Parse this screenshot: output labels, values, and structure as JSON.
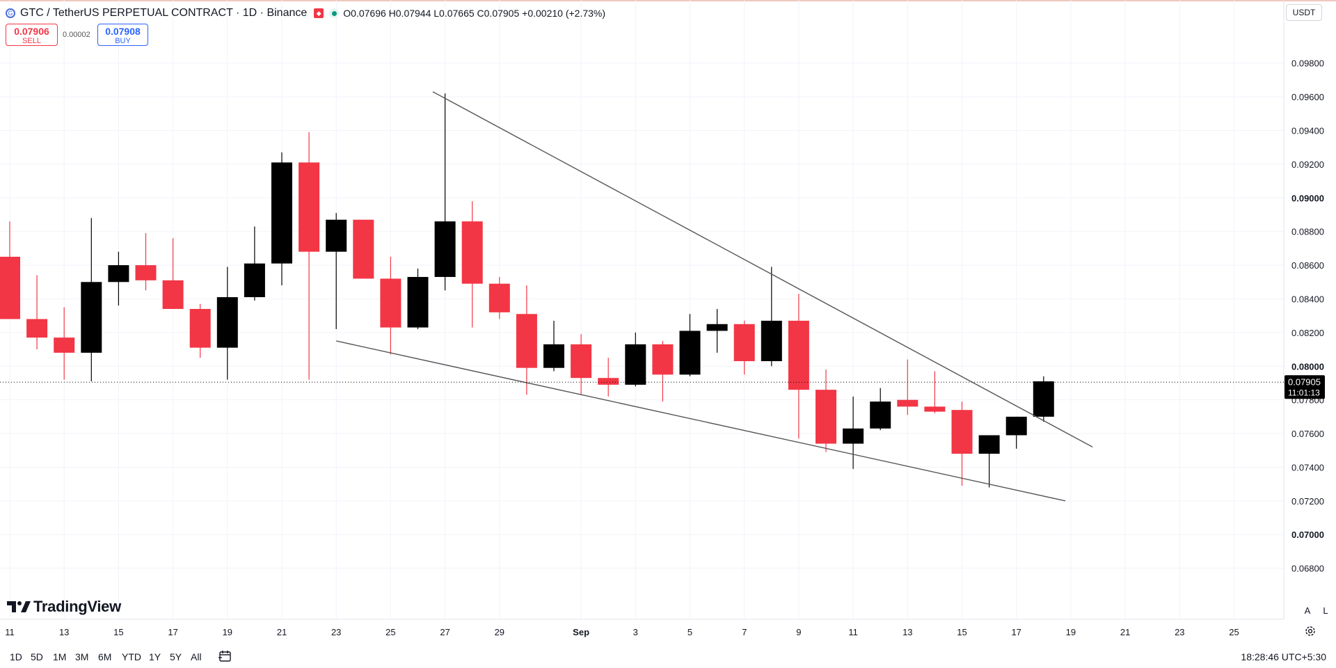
{
  "header": {
    "symbol_title": "GTC / TetherUS PERPETUAL CONTRACT · 1D · Binance",
    "logo_icon": "gtc-coin-icon",
    "ohlc": "O0.07696 H0.07944 L0.07665 C0.07905 +0.00210 (+2.73%)"
  },
  "trade": {
    "sell_price": "0.07906",
    "sell_label": "SELL",
    "spread": "0.00002",
    "buy_price": "0.07908",
    "buy_label": "BUY"
  },
  "currency_button": "USDT",
  "brand": "TradingView",
  "scale_buttons": {
    "auto": "A",
    "log": "L"
  },
  "ranges": [
    "1D",
    "5D",
    "1M",
    "3M",
    "6M",
    "YTD",
    "1Y",
    "5Y",
    "All"
  ],
  "clock": "18:28:46 UTC+5:30",
  "colors": {
    "up": "#000000",
    "down": "#f23645",
    "trendline": "#555555"
  },
  "chart_data": {
    "type": "candlestick",
    "y_ticks": [
      "0.09800",
      "0.09600",
      "0.09400",
      "0.09200",
      "0.09000",
      "0.08800",
      "0.08600",
      "0.08400",
      "0.08200",
      "0.08000",
      "0.07800",
      "0.07600",
      "0.07400",
      "0.07200",
      "0.07000",
      "0.06800"
    ],
    "ylim": [
      0.0672,
      0.0996
    ],
    "x_ticks": [
      {
        "label": "11",
        "i": 0
      },
      {
        "label": "13",
        "i": 2
      },
      {
        "label": "15",
        "i": 4
      },
      {
        "label": "17",
        "i": 6
      },
      {
        "label": "19",
        "i": 8
      },
      {
        "label": "21",
        "i": 10
      },
      {
        "label": "23",
        "i": 12
      },
      {
        "label": "25",
        "i": 14
      },
      {
        "label": "27",
        "i": 16
      },
      {
        "label": "29",
        "i": 18
      },
      {
        "label": "Sep",
        "i": 21
      },
      {
        "label": "3",
        "i": 23
      },
      {
        "label": "5",
        "i": 25
      },
      {
        "label": "7",
        "i": 27
      },
      {
        "label": "9",
        "i": 29
      },
      {
        "label": "11",
        "i": 31
      },
      {
        "label": "13",
        "i": 33
      },
      {
        "label": "15",
        "i": 35
      },
      {
        "label": "17",
        "i": 37
      },
      {
        "label": "19",
        "i": 39
      },
      {
        "label": "21",
        "i": 41
      },
      {
        "label": "23",
        "i": 43
      },
      {
        "label": "25",
        "i": 45
      }
    ],
    "candles": [
      {
        "o": 0.0865,
        "h": 0.0886,
        "l": 0.0828,
        "c": 0.0828
      },
      {
        "o": 0.0828,
        "h": 0.0854,
        "l": 0.081,
        "c": 0.0817
      },
      {
        "o": 0.0817,
        "h": 0.0835,
        "l": 0.0792,
        "c": 0.0808
      },
      {
        "o": 0.0808,
        "h": 0.0888,
        "l": 0.0791,
        "c": 0.085
      },
      {
        "o": 0.085,
        "h": 0.0868,
        "l": 0.0836,
        "c": 0.086
      },
      {
        "o": 0.086,
        "h": 0.0879,
        "l": 0.0845,
        "c": 0.0851
      },
      {
        "o": 0.0851,
        "h": 0.0876,
        "l": 0.0834,
        "c": 0.0834
      },
      {
        "o": 0.0834,
        "h": 0.0837,
        "l": 0.0805,
        "c": 0.0811
      },
      {
        "o": 0.0811,
        "h": 0.0859,
        "l": 0.0792,
        "c": 0.0841
      },
      {
        "o": 0.0841,
        "h": 0.0883,
        "l": 0.0839,
        "c": 0.0861
      },
      {
        "o": 0.0861,
        "h": 0.0927,
        "l": 0.0848,
        "c": 0.0921
      },
      {
        "o": 0.0921,
        "h": 0.0939,
        "l": 0.0792,
        "c": 0.0868
      },
      {
        "o": 0.0868,
        "h": 0.0891,
        "l": 0.0822,
        "c": 0.0887
      },
      {
        "o": 0.0887,
        "h": 0.0887,
        "l": 0.0852,
        "c": 0.0852
      },
      {
        "o": 0.0852,
        "h": 0.0865,
        "l": 0.0807,
        "c": 0.0823
      },
      {
        "o": 0.0823,
        "h": 0.0858,
        "l": 0.0822,
        "c": 0.0853
      },
      {
        "o": 0.0853,
        "h": 0.0962,
        "l": 0.0845,
        "c": 0.0886
      },
      {
        "o": 0.0886,
        "h": 0.0898,
        "l": 0.0823,
        "c": 0.0849
      },
      {
        "o": 0.0849,
        "h": 0.0853,
        "l": 0.0828,
        "c": 0.0832
      },
      {
        "o": 0.0831,
        "h": 0.0848,
        "l": 0.0783,
        "c": 0.0799
      },
      {
        "o": 0.0799,
        "h": 0.0827,
        "l": 0.0797,
        "c": 0.0813
      },
      {
        "o": 0.0813,
        "h": 0.0819,
        "l": 0.0783,
        "c": 0.0793
      },
      {
        "o": 0.0793,
        "h": 0.0805,
        "l": 0.0782,
        "c": 0.0789
      },
      {
        "o": 0.0789,
        "h": 0.082,
        "l": 0.0788,
        "c": 0.0813
      },
      {
        "o": 0.0813,
        "h": 0.0815,
        "l": 0.0779,
        "c": 0.0795
      },
      {
        "o": 0.0795,
        "h": 0.0831,
        "l": 0.0794,
        "c": 0.0821
      },
      {
        "o": 0.0821,
        "h": 0.0834,
        "l": 0.0808,
        "c": 0.0825
      },
      {
        "o": 0.0825,
        "h": 0.0827,
        "l": 0.0795,
        "c": 0.0803
      },
      {
        "o": 0.0803,
        "h": 0.0859,
        "l": 0.08,
        "c": 0.0827
      },
      {
        "o": 0.0827,
        "h": 0.0843,
        "l": 0.0757,
        "c": 0.0786
      },
      {
        "o": 0.0786,
        "h": 0.0798,
        "l": 0.0749,
        "c": 0.0754
      },
      {
        "o": 0.0754,
        "h": 0.0782,
        "l": 0.0739,
        "c": 0.0763
      },
      {
        "o": 0.0763,
        "h": 0.0787,
        "l": 0.0762,
        "c": 0.0779
      },
      {
        "o": 0.078,
        "h": 0.0804,
        "l": 0.0771,
        "c": 0.0776
      },
      {
        "o": 0.0776,
        "h": 0.0797,
        "l": 0.0772,
        "c": 0.0773
      },
      {
        "o": 0.0774,
        "h": 0.0779,
        "l": 0.0729,
        "c": 0.0748
      },
      {
        "o": 0.0748,
        "h": 0.0759,
        "l": 0.0728,
        "c": 0.0759
      },
      {
        "o": 0.0759,
        "h": 0.077,
        "l": 0.0751,
        "c": 0.077
      },
      {
        "o": 0.077,
        "h": 0.0794,
        "l": 0.0767,
        "c": 0.0791
      }
    ],
    "trendlines": [
      {
        "name": "upper",
        "x1": 15.55,
        "y1": 0.0963,
        "x2": 39.8,
        "y2": 0.0752
      },
      {
        "name": "lower",
        "x1": 12.0,
        "y1": 0.0815,
        "x2": 38.8,
        "y2": 0.072
      }
    ],
    "last_price": "0.07905",
    "countdown": "11:01:13"
  }
}
